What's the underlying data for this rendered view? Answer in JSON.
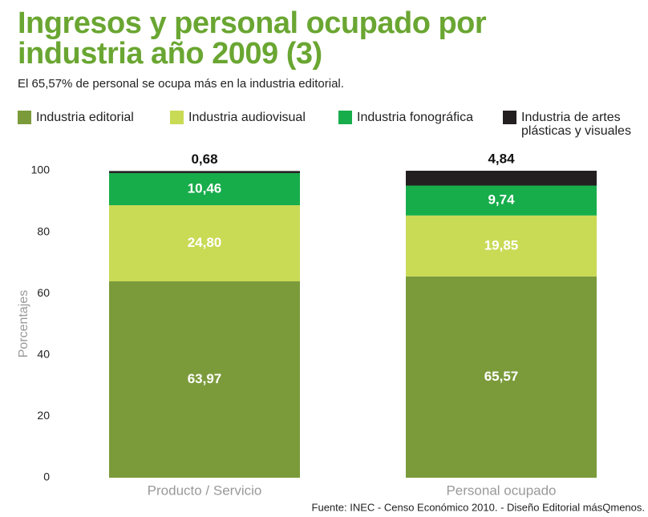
{
  "chart_data": {
    "type": "stacked_bar",
    "title": "Ingresos y personal ocupado por industria año 2009 (3)",
    "subtitle": "El 65,57% de personal se ocupa más en la industria editorial.",
    "ylabel": "Porcentajes",
    "source": "Fuente: INEC - Censo Económico 2010. - Diseño Editorial másQmenos.",
    "categories": [
      "Producto / Servicio",
      "Personal ocupado"
    ],
    "series": [
      {
        "name": "Industria editorial",
        "color": "#7b9b3b",
        "values": [
          63.97,
          65.57
        ],
        "value_labels": [
          "63,97",
          "65,57"
        ]
      },
      {
        "name": "Industria audiovisual",
        "color": "#c9da55",
        "values": [
          24.8,
          19.85
        ],
        "value_labels": [
          "24,80",
          "19,85"
        ]
      },
      {
        "name": "Industria fonográfica",
        "color": "#17ad4b",
        "values": [
          10.46,
          9.74
        ],
        "value_labels": [
          "10,46",
          "9,74"
        ]
      },
      {
        "name": "Industria de artes plásticas y visuales",
        "color": "#231f20",
        "values": [
          0.68,
          4.84
        ],
        "value_labels": [
          "0,68",
          "4,84"
        ]
      }
    ],
    "ylim": [
      0,
      100
    ],
    "yticks": [
      0,
      20,
      40,
      60,
      80,
      100
    ],
    "grid": false
  }
}
